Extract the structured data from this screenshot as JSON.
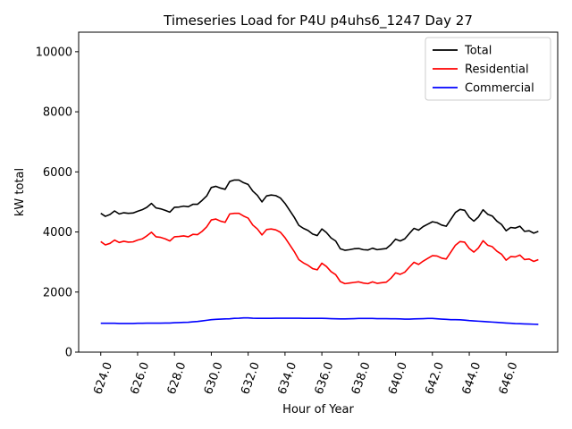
{
  "chart_data": {
    "type": "line",
    "title": "Timeseries Load for P4U p4uhs6_1247  Day 27",
    "xlabel": "Hour of Year",
    "ylabel": "kW total",
    "xlim": [
      622.8,
      648.8
    ],
    "ylim": [
      0,
      10650
    ],
    "xticks": [
      624,
      626,
      628,
      630,
      632,
      634,
      636,
      638,
      640,
      642,
      644,
      646
    ],
    "xtick_labels": [
      "624.0",
      "626.0",
      "628.0",
      "630.0",
      "632.0",
      "634.0",
      "636.0",
      "638.0",
      "640.0",
      "642.0",
      "644.0",
      "646.0"
    ],
    "yticks": [
      0,
      2000,
      4000,
      6000,
      8000,
      10000
    ],
    "ytick_labels": [
      "0",
      "2000",
      "4000",
      "6000",
      "8000",
      "10000"
    ],
    "grid": false,
    "legend": "top-right",
    "x": [
      624.0,
      624.25,
      624.5,
      624.75,
      625.0,
      625.25,
      625.5,
      625.75,
      626.0,
      626.25,
      626.5,
      626.75,
      627.0,
      627.25,
      627.5,
      627.75,
      628.0,
      628.25,
      628.5,
      628.75,
      629.0,
      629.25,
      629.5,
      629.75,
      630.0,
      630.25,
      630.5,
      630.75,
      631.0,
      631.25,
      631.5,
      631.75,
      632.0,
      632.25,
      632.5,
      632.75,
      633.0,
      633.25,
      633.5,
      633.75,
      634.0,
      634.25,
      634.5,
      634.75,
      635.0,
      635.25,
      635.5,
      635.75,
      636.0,
      636.25,
      636.5,
      636.75,
      637.0,
      637.25,
      637.5,
      637.75,
      638.0,
      638.25,
      638.5,
      638.75,
      639.0,
      639.25,
      639.5,
      639.75,
      640.0,
      640.25,
      640.5,
      640.75,
      641.0,
      641.25,
      641.5,
      641.75,
      642.0,
      642.25,
      642.5,
      642.75,
      643.0,
      643.25,
      643.5,
      643.75,
      644.0,
      644.25,
      644.5,
      644.75,
      645.0,
      645.25,
      645.5,
      645.75,
      646.0,
      646.25,
      646.5,
      646.75,
      647.0,
      647.25,
      647.5,
      647.75
    ],
    "series": [
      {
        "name": "Total",
        "color": "#000000",
        "values": [
          4620,
          4520,
          4580,
          4700,
          4600,
          4640,
          4620,
          4630,
          4690,
          4740,
          4820,
          4950,
          4800,
          4770,
          4720,
          4660,
          4820,
          4830,
          4860,
          4840,
          4920,
          4920,
          5050,
          5200,
          5480,
          5520,
          5460,
          5420,
          5680,
          5730,
          5730,
          5640,
          5580,
          5360,
          5220,
          5000,
          5200,
          5230,
          5210,
          5130,
          4950,
          4720,
          4490,
          4220,
          4120,
          4050,
          3930,
          3880,
          4100,
          3980,
          3800,
          3700,
          3440,
          3390,
          3410,
          3440,
          3450,
          3410,
          3400,
          3460,
          3410,
          3430,
          3450,
          3580,
          3760,
          3700,
          3770,
          3950,
          4120,
          4060,
          4180,
          4260,
          4340,
          4310,
          4230,
          4190,
          4420,
          4650,
          4750,
          4720,
          4490,
          4360,
          4500,
          4740,
          4590,
          4530,
          4360,
          4250,
          4040,
          4150,
          4130,
          4190,
          4020,
          4040,
          3960,
          4020
        ]
      },
      {
        "name": "Residential",
        "color": "#ff0000",
        "values": [
          3680,
          3570,
          3620,
          3730,
          3650,
          3690,
          3660,
          3670,
          3730,
          3770,
          3870,
          3990,
          3840,
          3820,
          3770,
          3700,
          3840,
          3850,
          3870,
          3840,
          3920,
          3910,
          4020,
          4170,
          4400,
          4430,
          4360,
          4320,
          4600,
          4620,
          4620,
          4530,
          4460,
          4230,
          4100,
          3900,
          4080,
          4100,
          4070,
          3990,
          3810,
          3580,
          3350,
          3080,
          2970,
          2890,
          2780,
          2740,
          2960,
          2850,
          2680,
          2580,
          2350,
          2280,
          2300,
          2320,
          2340,
          2300,
          2280,
          2340,
          2290,
          2310,
          2330,
          2460,
          2640,
          2590,
          2660,
          2830,
          2990,
          2920,
          3030,
          3120,
          3210,
          3200,
          3130,
          3100,
          3330,
          3560,
          3680,
          3660,
          3450,
          3330,
          3470,
          3710,
          3560,
          3510,
          3360,
          3260,
          3060,
          3180,
          3170,
          3230,
          3080,
          3100,
          3020,
          3080
        ]
      },
      {
        "name": "Commercial",
        "color": "#0000ff",
        "values": [
          960,
          960,
          960,
          960,
          955,
          955,
          955,
          955,
          960,
          960,
          965,
          965,
          965,
          965,
          970,
          970,
          980,
          985,
          990,
          995,
          1010,
          1020,
          1040,
          1060,
          1080,
          1090,
          1100,
          1105,
          1110,
          1125,
          1130,
          1140,
          1140,
          1130,
          1125,
          1125,
          1125,
          1125,
          1130,
          1130,
          1130,
          1130,
          1130,
          1130,
          1125,
          1125,
          1125,
          1125,
          1125,
          1120,
          1115,
          1110,
          1105,
          1105,
          1110,
          1115,
          1120,
          1120,
          1120,
          1120,
          1115,
          1115,
          1115,
          1110,
          1110,
          1105,
          1100,
          1100,
          1105,
          1110,
          1115,
          1120,
          1120,
          1110,
          1100,
          1090,
          1080,
          1080,
          1075,
          1065,
          1050,
          1040,
          1030,
          1020,
          1010,
          1000,
          990,
          980,
          970,
          960,
          950,
          945,
          940,
          935,
          930,
          925
        ]
      }
    ]
  }
}
